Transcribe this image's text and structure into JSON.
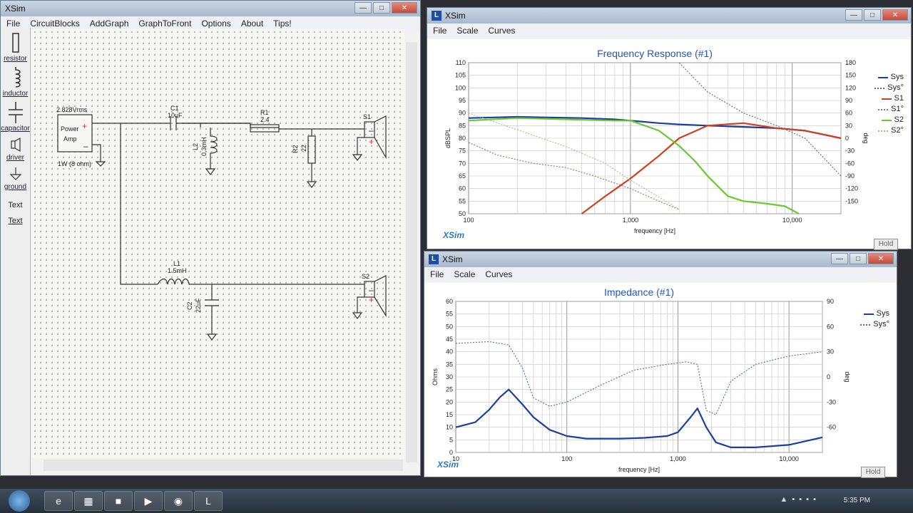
{
  "left_window": {
    "title": "XSim",
    "menu": [
      "File",
      "CircuitBlocks",
      "AddGraph",
      "GraphToFront",
      "Options",
      "About",
      "Tips!"
    ],
    "palette": [
      {
        "label": "resistor",
        "icon": "resistor-icon"
      },
      {
        "label": "inductor",
        "icon": "inductor-icon"
      },
      {
        "label": "capacitor",
        "icon": "capacitor-icon"
      },
      {
        "label": "driver",
        "icon": "driver-icon"
      },
      {
        "label": "ground",
        "icon": "ground-icon"
      },
      {
        "label": "Text",
        "icon": "text-icon"
      },
      {
        "label": "Text",
        "icon": "text-link-icon"
      }
    ],
    "schematic": {
      "amp_line1": "Power",
      "amp_line2": "Amp",
      "amp_voltage": "2.828Vrms",
      "amp_power": "1W (8 ohm)",
      "c1_name": "C1",
      "c1_value": "10uF",
      "r1_name": "R1",
      "r1_value": "2.4",
      "l2_name": "L2",
      "l2_value": "0.3mH",
      "r2_name": "R2",
      "r2_value": "22",
      "s1_name": "S1",
      "l1_name": "L1",
      "l1_value": "1.5mH",
      "c2_name": "C2",
      "c2_value": "22uF",
      "s2_name": "S2"
    }
  },
  "freq_window": {
    "title": "XSim",
    "menu": [
      "File",
      "Scale",
      "Curves"
    ],
    "brand": "XSim",
    "hold": "Hold",
    "chart_data": {
      "type": "line",
      "title": "Frequency Response (#1)",
      "xlabel": "frequency [Hz]",
      "ylabel": "dBSPL",
      "y2label": "deg",
      "x_scale": "log",
      "xlim": [
        100,
        20000
      ],
      "ylim": [
        50,
        110
      ],
      "y2lim": [
        -180,
        180
      ],
      "x_ticks": [
        "100",
        "1,000",
        "10,000"
      ],
      "y_ticks": [
        "110",
        "105",
        "100",
        "95",
        "90",
        "85",
        "80",
        "75",
        "70",
        "65",
        "60",
        "55",
        "50"
      ],
      "y2_ticks": [
        "180",
        "150",
        "120",
        "90",
        "60",
        "30",
        "0",
        "-30",
        "-60",
        "-90",
        "-120",
        "-150"
      ],
      "legend_position": "right",
      "series": [
        {
          "name": "Sys",
          "color": "#1a3fa0",
          "style": "solid",
          "x": [
            100,
            200,
            500,
            800,
            1000,
            1500,
            2000,
            3000,
            5000,
            8000,
            12000,
            20000
          ],
          "y": [
            88,
            88.5,
            88,
            87.5,
            87,
            86,
            85.5,
            85,
            84.5,
            84,
            83,
            80
          ]
        },
        {
          "name": "Sys°",
          "color": "#666666",
          "style": "dotted",
          "x": [
            2000,
            3000,
            5000,
            8000,
            12000,
            20000
          ],
          "y": [
            180,
            110,
            60,
            30,
            0,
            -90
          ]
        },
        {
          "name": "S1",
          "color": "#d04020",
          "style": "solid",
          "x": [
            500,
            700,
            1000,
            1500,
            2000,
            3000,
            5000,
            8000,
            12000,
            20000
          ],
          "y": [
            50,
            57,
            64,
            73,
            80,
            85,
            86,
            84,
            83,
            80
          ]
        },
        {
          "name": "S1°",
          "color": "#b06a5a",
          "style": "dotted",
          "x": [
            100,
            150,
            250,
            400,
            600,
            1000,
            1500,
            2000
          ],
          "y": [
            -10,
            -40,
            -60,
            -70,
            -90,
            -120,
            -150,
            -170
          ]
        },
        {
          "name": "S2",
          "color": "#6cc830",
          "style": "solid",
          "x": [
            100,
            200,
            400,
            800,
            1000,
            1500,
            2000,
            2500,
            3000,
            4000,
            5000,
            7000,
            9000,
            11000
          ],
          "y": [
            87,
            88,
            87.5,
            87,
            87,
            83,
            77,
            71,
            65,
            57,
            55,
            54,
            53,
            50
          ]
        },
        {
          "name": "S2°",
          "color": "#9ac48a",
          "style": "dotted",
          "x": [
            100,
            200,
            400,
            700,
            1000,
            1500,
            2000
          ],
          "y": [
            60,
            20,
            -20,
            -60,
            -100,
            -140,
            -170
          ]
        }
      ]
    }
  },
  "imp_window": {
    "title": "XSim",
    "menu": [
      "File",
      "Scale",
      "Curves"
    ],
    "brand": "XSim",
    "hold": "Hold",
    "chart_data": {
      "type": "line",
      "title": "Impedance (#1)",
      "xlabel": "frequency [Hz]",
      "ylabel": "Ohms",
      "y2label": "deg",
      "x_scale": "log",
      "xlim": [
        10,
        20000
      ],
      "ylim": [
        0,
        60
      ],
      "y2lim": [
        -90,
        90
      ],
      "x_ticks": [
        "10",
        "100",
        "1,000",
        "10,000"
      ],
      "y_ticks": [
        "60",
        "55",
        "50",
        "45",
        "40",
        "35",
        "30",
        "25",
        "20",
        "15",
        "10",
        "5",
        "0"
      ],
      "y2_ticks": [
        "90",
        "60",
        "30",
        "0",
        "-30",
        "-60"
      ],
      "legend_position": "top-right",
      "series": [
        {
          "name": "Sys",
          "color": "#1a3fa0",
          "style": "solid",
          "x": [
            10,
            15,
            20,
            25,
            30,
            40,
            50,
            70,
            100,
            150,
            200,
            300,
            500,
            800,
            1000,
            1300,
            1500,
            1800,
            2200,
            3000,
            5000,
            10000,
            20000
          ],
          "y": [
            10,
            12,
            17,
            22,
            25,
            19,
            14,
            9,
            6.5,
            5.5,
            5.5,
            5.5,
            5.8,
            6.5,
            8,
            14,
            17.5,
            10,
            4,
            2,
            2,
            3,
            6
          ]
        },
        {
          "name": "Sys°",
          "color": "#5a6a9a",
          "style": "dotted",
          "x": [
            10,
            20,
            30,
            40,
            50,
            70,
            100,
            200,
            400,
            800,
            1200,
            1500,
            1800,
            2200,
            3000,
            5000,
            10000,
            20000
          ],
          "y": [
            40,
            42,
            38,
            10,
            -25,
            -35,
            -30,
            -10,
            8,
            15,
            18,
            15,
            -40,
            -45,
            -5,
            15,
            25,
            30
          ]
        }
      ]
    }
  },
  "taskbar": {
    "clock": "5:35 PM"
  }
}
